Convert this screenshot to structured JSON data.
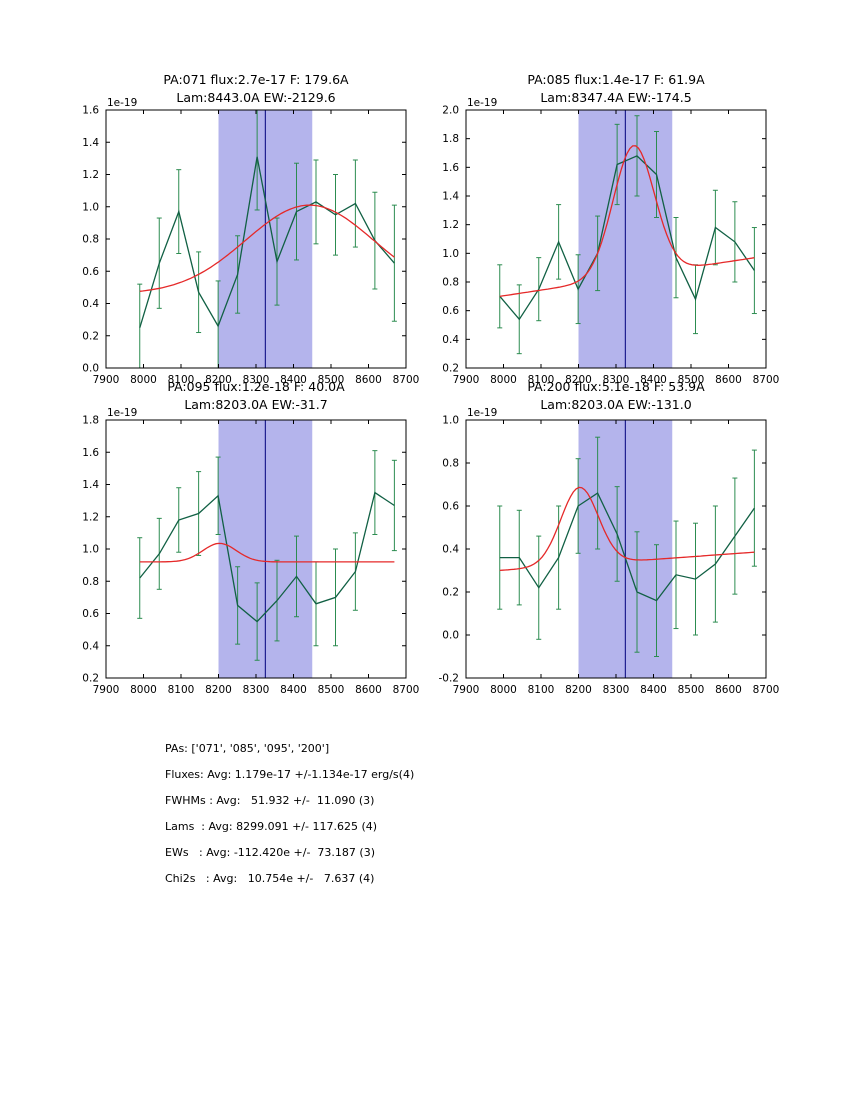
{
  "colors": {
    "band": "#b4b4ec",
    "vline": "#1f1f8f",
    "data_line": "#116044",
    "err": "#2c8c50",
    "fit": "#e52929",
    "axis": "#000000"
  },
  "stats": {
    "lines": [
      "PAs: ['071', '085', '095', '200']",
      "Fluxes: Avg: 1.179e-17 +/-1.134e-17 erg/s(4)",
      "FWHMs : Avg:   51.932 +/-  11.090 (3)",
      "Lams  : Avg: 8299.091 +/- 117.625 (4)",
      "EWs   : Avg: -112.420e +/-  73.187 (3)",
      "Chi2s   : Avg:   10.754e +/-   7.637 (4)"
    ]
  },
  "chart_data": [
    {
      "type": "line",
      "pa": "071",
      "title1": "PA:071 flux:2.7e-17 F: 179.6A",
      "title2": "Lam:8443.0A EW:-2129.6",
      "offset": "1e-19",
      "xlim": [
        7900,
        8700
      ],
      "ylim": [
        0.0,
        1.6
      ],
      "xticks": [
        7900,
        8000,
        8100,
        8200,
        8300,
        8400,
        8500,
        8600,
        8700
      ],
      "yticks": [
        0.0,
        0.2,
        0.4,
        0.6,
        0.8,
        1.0,
        1.2,
        1.4,
        1.6
      ],
      "band": [
        8200,
        8450
      ],
      "vline": 8325,
      "x": [
        7990,
        8042,
        8094,
        8147,
        8199,
        8251,
        8303,
        8356,
        8408,
        8460,
        8512,
        8565,
        8617,
        8669
      ],
      "y": [
        0.25,
        0.65,
        0.97,
        0.47,
        0.26,
        0.58,
        1.31,
        0.66,
        0.97,
        1.03,
        0.95,
        1.02,
        0.79,
        0.65
      ],
      "yerr": [
        0.27,
        0.28,
        0.26,
        0.25,
        0.28,
        0.24,
        0.33,
        0.27,
        0.3,
        0.26,
        0.25,
        0.27,
        0.3,
        0.36
      ],
      "fit": {
        "b0": 0.46,
        "b1": 0.0,
        "amp": 0.55,
        "center": 8443.0,
        "sigma": 170
      }
    },
    {
      "type": "line",
      "pa": "085",
      "title1": "PA:085 flux:1.4e-17 F: 61.9A",
      "title2": "Lam:8347.4A EW:-174.5",
      "offset": "1e-19",
      "xlim": [
        7900,
        8700
      ],
      "ylim": [
        0.2,
        2.0
      ],
      "xticks": [
        7900,
        8000,
        8100,
        8200,
        8300,
        8400,
        8500,
        8600,
        8700
      ],
      "yticks": [
        0.2,
        0.4,
        0.6,
        0.8,
        1.0,
        1.2,
        1.4,
        1.6,
        1.8,
        2.0
      ],
      "band": [
        8200,
        8450
      ],
      "vline": 8325,
      "x": [
        7990,
        8042,
        8094,
        8147,
        8199,
        8251,
        8303,
        8356,
        8408,
        8460,
        8512,
        8565,
        8617,
        8669
      ],
      "y": [
        0.7,
        0.54,
        0.75,
        1.08,
        0.75,
        1.0,
        1.62,
        1.68,
        1.55,
        0.97,
        0.68,
        1.18,
        1.08,
        0.88
      ],
      "yerr": [
        0.22,
        0.24,
        0.22,
        0.26,
        0.24,
        0.26,
        0.28,
        0.28,
        0.3,
        0.28,
        0.24,
        0.26,
        0.28,
        0.3
      ],
      "fit": {
        "b0": 0.664,
        "b1": 0.000397,
        "amp": 0.91,
        "center": 8347.4,
        "sigma": 55
      }
    },
    {
      "type": "line",
      "pa": "095",
      "title1": "PA:095 flux:1.2e-18 F: 40.0A",
      "title2": "Lam:8203.0A EW:-31.7",
      "offset": "1e-19",
      "xlim": [
        7900,
        8700
      ],
      "ylim": [
        0.2,
        1.8
      ],
      "xticks": [
        7900,
        8000,
        8100,
        8200,
        8300,
        8400,
        8500,
        8600,
        8700
      ],
      "yticks": [
        0.2,
        0.4,
        0.6,
        0.8,
        1.0,
        1.2,
        1.4,
        1.6,
        1.8
      ],
      "band": [
        8200,
        8450
      ],
      "vline": 8325,
      "x": [
        7990,
        8042,
        8094,
        8147,
        8199,
        8251,
        8303,
        8356,
        8408,
        8460,
        8512,
        8565,
        8617,
        8669
      ],
      "y": [
        0.82,
        0.97,
        1.18,
        1.22,
        1.33,
        0.65,
        0.55,
        0.68,
        0.83,
        0.66,
        0.7,
        0.86,
        1.35,
        1.27
      ],
      "yerr": [
        0.25,
        0.22,
        0.2,
        0.26,
        0.24,
        0.24,
        0.24,
        0.25,
        0.25,
        0.26,
        0.3,
        0.24,
        0.26,
        0.28
      ],
      "fit": {
        "b0": 0.92,
        "b1": 0.0,
        "amp": 0.115,
        "center": 8203.0,
        "sigma": 45
      }
    },
    {
      "type": "line",
      "pa": "200",
      "title1": "PA:200 flux:5.1e-18 F: 53.9A",
      "title2": "Lam:8203.0A EW:-131.0",
      "offset": "1e-19",
      "xlim": [
        7900,
        8700
      ],
      "ylim": [
        -0.2,
        1.0
      ],
      "xticks": [
        7900,
        8000,
        8100,
        8200,
        8300,
        8400,
        8500,
        8600,
        8700
      ],
      "yticks": [
        -0.2,
        0.0,
        0.2,
        0.4,
        0.6,
        0.8,
        1.0
      ],
      "band": [
        8200,
        8450
      ],
      "vline": 8325,
      "x": [
        7990,
        8042,
        8094,
        8147,
        8199,
        8251,
        8303,
        8356,
        8408,
        8460,
        8512,
        8565,
        8617,
        8669
      ],
      "y": [
        0.36,
        0.36,
        0.22,
        0.36,
        0.6,
        0.66,
        0.47,
        0.2,
        0.16,
        0.28,
        0.26,
        0.33,
        0.46,
        0.59
      ],
      "yerr": [
        0.24,
        0.22,
        0.24,
        0.24,
        0.22,
        0.26,
        0.22,
        0.28,
        0.26,
        0.25,
        0.26,
        0.27,
        0.27,
        0.27
      ],
      "fit": {
        "b0": 0.289,
        "b1": 0.000125,
        "amp": 0.36,
        "center": 8203.0,
        "sigma": 50
      }
    }
  ]
}
